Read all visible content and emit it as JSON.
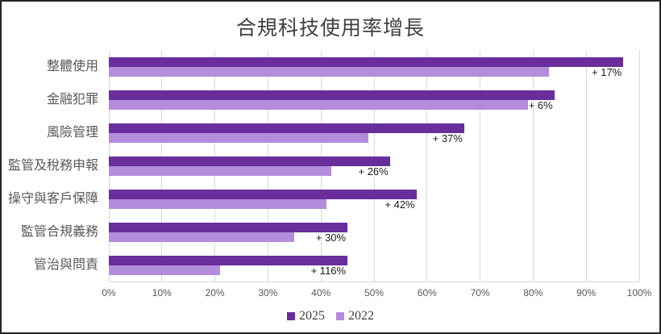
{
  "title": "合規科技使用率增長",
  "colors": {
    "series_2025": "#6a2d9c",
    "series_2022": "#b48cdc",
    "gridline": "#d9d9d9",
    "title_text": "#404040",
    "axis_text": "#595959",
    "annotation_text": "#1a1a1a",
    "frame_border": "#262626"
  },
  "chart_data": {
    "type": "bar",
    "orientation": "horizontal",
    "title": "合規科技使用率增長",
    "categories": [
      "整體使用",
      "金融犯罪",
      "風險管理",
      "監管及稅務申報",
      "操守與客戶保障",
      "監管合規義務",
      "管治與問責"
    ],
    "series": [
      {
        "name": "2025",
        "color": "#6a2d9c",
        "values": [
          97,
          84,
          67,
          53,
          58,
          45,
          45
        ]
      },
      {
        "name": "2022",
        "color": "#b48cdc",
        "values": [
          83,
          79,
          49,
          42,
          41,
          35,
          21
        ]
      }
    ],
    "annotations": [
      "+ 17%",
      "+ 6%",
      "+ 37%",
      "+ 26%",
      "+ 42%",
      "+ 30%",
      "+ 116%"
    ],
    "xticks": [
      "0%",
      "10%",
      "20%",
      "30%",
      "40%",
      "50%",
      "60%",
      "70%",
      "80%",
      "90%",
      "100%"
    ],
    "xtick_values": [
      0,
      10,
      20,
      30,
      40,
      50,
      60,
      70,
      80,
      90,
      100
    ],
    "xlim": [
      0,
      100
    ],
    "grid": "vertical",
    "legend_position": "bottom"
  },
  "legend": {
    "items": [
      {
        "label": "2025",
        "color": "#6a2d9c"
      },
      {
        "label": "2022",
        "color": "#b48cdc"
      }
    ]
  }
}
